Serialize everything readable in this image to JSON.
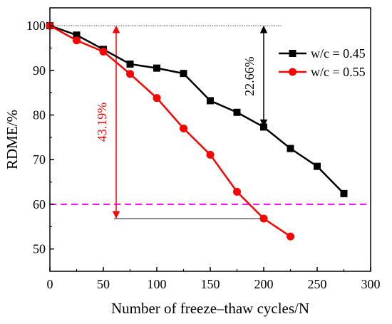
{
  "chart_data": {
    "type": "line",
    "title": "",
    "xlabel": "Number of freeze–thaw cycles/N",
    "ylabel": "RDME/%",
    "xlim": [
      0,
      300
    ],
    "ylim": [
      45,
      104
    ],
    "xticks": [
      0,
      50,
      100,
      150,
      200,
      250,
      300
    ],
    "yticks": [
      50,
      60,
      70,
      80,
      90,
      100
    ],
    "grid": false,
    "legend_position": "top-right",
    "series": [
      {
        "name": "w/c = 0.45",
        "color": "#000000",
        "marker": "square",
        "x": [
          0,
          25,
          50,
          75,
          100,
          125,
          150,
          175,
          200,
          225,
          250,
          275
        ],
        "y": [
          100,
          97.9,
          94.7,
          91.4,
          90.5,
          89.3,
          83.2,
          80.6,
          77.3,
          72.5,
          68.5,
          62.4
        ]
      },
      {
        "name": "w/c = 0.55",
        "color": "#ff0000",
        "marker": "circle",
        "x": [
          0,
          25,
          50,
          75,
          100,
          125,
          150,
          175,
          200,
          225
        ],
        "y": [
          100,
          96.7,
          94.2,
          89.2,
          83.8,
          77.0,
          71.1,
          62.8,
          56.8,
          52.8
        ]
      }
    ],
    "reference_lines": [
      {
        "kind": "horizontal",
        "y": 60,
        "color": "#ff00ff",
        "style": "dashed"
      },
      {
        "kind": "horizontal",
        "y": 100,
        "x_range": [
          0,
          217
        ],
        "color": "#000000",
        "style": "dotted"
      },
      {
        "kind": "horizontal",
        "y": 56.81,
        "x_range": [
          60,
          200
        ],
        "color": "#000000",
        "style": "solid"
      }
    ],
    "annotations": [
      {
        "text": "43.19%",
        "x": 62,
        "y_range": [
          56.81,
          100
        ],
        "color": "#ff0000"
      },
      {
        "text": "22.66%",
        "x": 200,
        "y_range": [
          77.34,
          100
        ],
        "color": "#000000"
      }
    ]
  }
}
